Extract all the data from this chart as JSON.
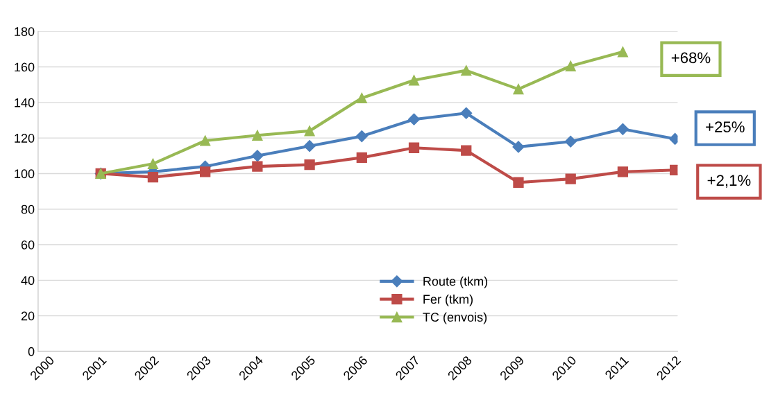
{
  "chart_data": {
    "type": "line",
    "x": [
      2001,
      2002,
      2003,
      2004,
      2005,
      2006,
      2007,
      2008,
      2009,
      2010,
      2011,
      2012
    ],
    "series": [
      {
        "name": "Route (tkm)",
        "color": "#4a7ebb",
        "marker": "diamond",
        "values": [
          100,
          101,
          104,
          110,
          115.5,
          121,
          130.5,
          134,
          115,
          118,
          125,
          119.5
        ]
      },
      {
        "name": "Fer (tkm)",
        "color": "#be4b48",
        "marker": "square",
        "values": [
          100,
          98,
          101,
          104,
          105,
          109,
          114.5,
          113,
          95,
          97,
          101,
          102
        ]
      },
      {
        "name": "TC (envois)",
        "color": "#98b954",
        "marker": "triangle",
        "values": [
          100,
          105.5,
          118.5,
          121.5,
          124,
          142.5,
          152.5,
          158,
          147.5,
          160.5,
          168.5,
          null
        ]
      }
    ],
    "xlim": [
      1999.8,
      2012.05
    ],
    "xticks": [
      2000,
      2001,
      2002,
      2003,
      2004,
      2005,
      2006,
      2007,
      2008,
      2009,
      2010,
      2011,
      2012
    ],
    "ylim": [
      0,
      180
    ],
    "yticks": [
      0,
      20,
      40,
      60,
      80,
      100,
      120,
      140,
      160,
      180
    ],
    "grid": "y",
    "legend": "bottom",
    "line_style": "solid",
    "annotations": [
      "+68%",
      "+25%",
      "+2,1%"
    ]
  }
}
